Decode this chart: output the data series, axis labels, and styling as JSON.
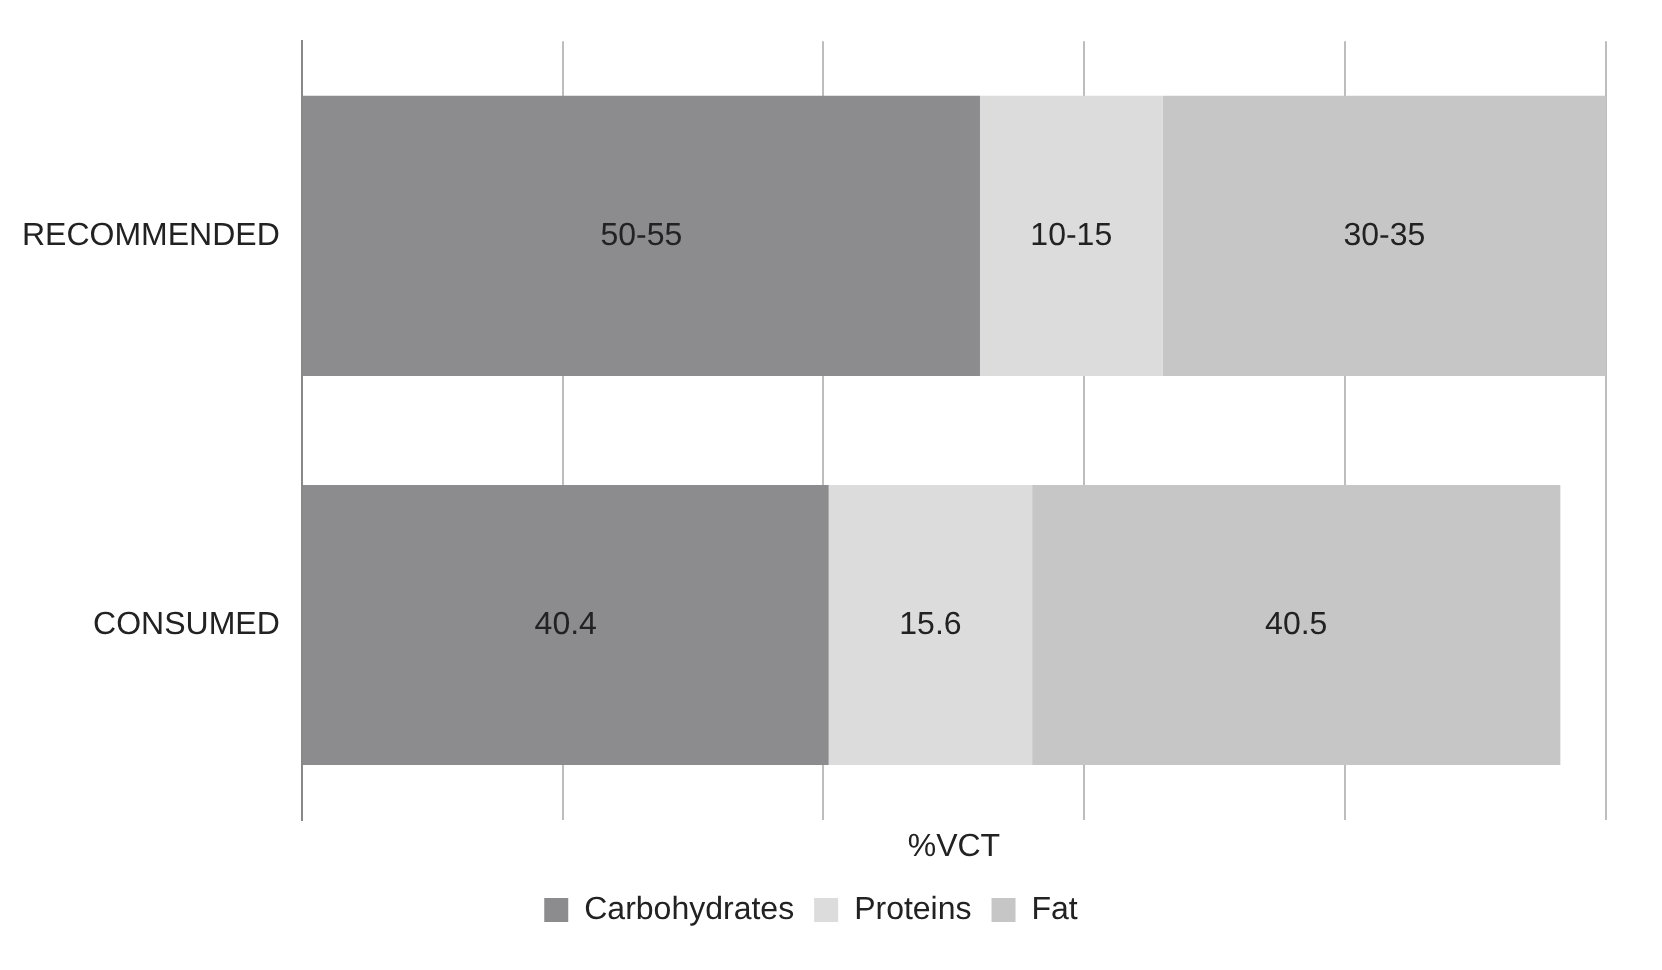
{
  "chart_data": {
    "type": "bar",
    "orientation": "horizontal",
    "stacked": true,
    "xlabel": "%VCT",
    "categories": [
      "RECOMMENDED",
      "CONSUMED"
    ],
    "series": [
      {
        "name": "Carbohydrates",
        "color": "#8c8c8e",
        "values": [
          52,
          40.4
        ],
        "value_labels": [
          "50-55",
          "40.4"
        ]
      },
      {
        "name": "Proteins",
        "color": "#dcdcdc",
        "values": [
          14,
          15.6
        ],
        "value_labels": [
          "10-15",
          "15.6"
        ]
      },
      {
        "name": "Fat",
        "color": "#c6c6c6",
        "values": [
          34,
          40.5
        ],
        "value_labels": [
          "30-35",
          "40.5"
        ]
      }
    ],
    "xlim": [
      0,
      100
    ],
    "xticks": [
      {
        "value": 0,
        "label": null
      },
      {
        "value": 20,
        "label": null
      },
      {
        "value": 40,
        "label": null
      },
      {
        "value": 60,
        "label": null
      },
      {
        "value": 80,
        "label": null
      },
      {
        "value": 100,
        "label": null
      }
    ],
    "tick_labels": "y",
    "grid": "x",
    "legend": "bottom"
  }
}
